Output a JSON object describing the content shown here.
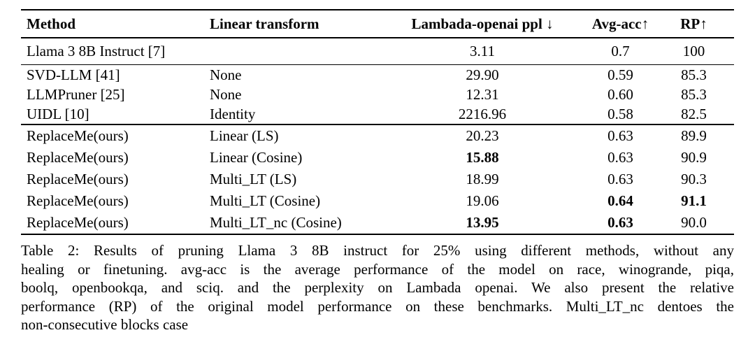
{
  "colors": {
    "text": "#000000",
    "background": "#ffffff",
    "rule": "#000000"
  },
  "table": {
    "headers": [
      "Method",
      "Linear transform",
      "Lambada-openai ppl ↓",
      "Avg-acc↑",
      "RP↑"
    ],
    "rows": [
      {
        "cells": [
          "Llama 3 8B Instruct [7]",
          "",
          "3.11",
          "0.7",
          "100"
        ]
      },
      {
        "cells": [
          "SVD-LLM [41]",
          "None",
          "29.90",
          "0.59",
          "85.3"
        ]
      },
      {
        "cells": [
          "LLMPruner [25]",
          "None",
          "12.31",
          "0.60",
          "85.3"
        ]
      },
      {
        "cells": [
          "UIDL [10]",
          "Identity",
          "2216.96",
          "0.58",
          "82.5"
        ]
      },
      {
        "cells": [
          "ReplaceMe(ours)",
          "Linear (LS)",
          "20.23",
          "0.63",
          "89.9"
        ]
      },
      {
        "cells": [
          "ReplaceMe(ours)",
          "Linear (Cosine)",
          {
            "t": "15.88",
            "b": true
          },
          "0.63",
          "90.9"
        ]
      },
      {
        "cells": [
          "ReplaceMe(ours)",
          "Multi_LT (LS)",
          "18.99",
          "0.63",
          "90.3"
        ]
      },
      {
        "cells": [
          "ReplaceMe(ours)",
          "Multi_LT (Cosine)",
          "19.06",
          {
            "t": "0.64",
            "b": true
          },
          {
            "t": "91.1",
            "b": true
          }
        ]
      },
      {
        "cells": [
          "ReplaceMe(ours)",
          "Multi_LT_nc (Cosine)",
          {
            "t": "13.95",
            "b": true
          },
          {
            "t": "0.63",
            "b": true
          },
          "90.0"
        ]
      }
    ]
  },
  "caption": {
    "lines": [
      "Table 2: Results of pruning Llama 3 8B instruct for 25% using different methods, without any",
      "healing or finetuning. avg-acc is the average performance of the model on race, winogrande, piqa,",
      "boolq, openbookqa, and sciq. and the perplexity on Lambada openai. We also present the relative",
      "performance (RP) of the original model performance on these benchmarks. Multi_LT_nc dentoes the",
      "non-consecutive blocks case"
    ]
  }
}
